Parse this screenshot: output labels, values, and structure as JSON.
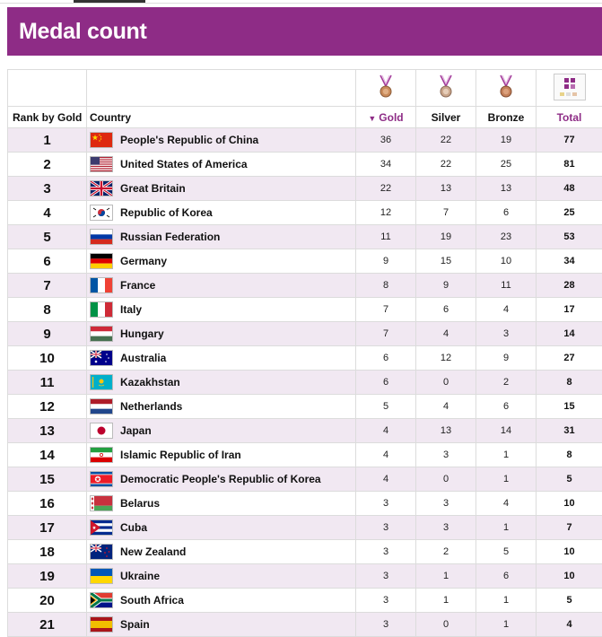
{
  "page": {
    "title": "Medal count"
  },
  "colors": {
    "accent": "#8e2c86",
    "row_alt": "#f1e8f2"
  },
  "table": {
    "medal_icons": [
      "medal-gold-icon",
      "medal-silver-icon",
      "medal-bronze-icon",
      "total-grid-icon"
    ],
    "headers": {
      "rank": "Rank by Gold",
      "country": "Country",
      "gold": "Gold",
      "silver": "Silver",
      "bronze": "Bronze",
      "total": "Total"
    },
    "sorted_by": "gold",
    "rows": [
      {
        "rank": "1",
        "country": "People's Republic of China",
        "flag": "china-flag-icon",
        "gold": "36",
        "silver": "22",
        "bronze": "19",
        "total": "77"
      },
      {
        "rank": "2",
        "country": "United States of America",
        "flag": "usa-flag-icon",
        "gold": "34",
        "silver": "22",
        "bronze": "25",
        "total": "81"
      },
      {
        "rank": "3",
        "country": "Great Britain",
        "flag": "uk-flag-icon",
        "gold": "22",
        "silver": "13",
        "bronze": "13",
        "total": "48"
      },
      {
        "rank": "4",
        "country": "Republic of Korea",
        "flag": "korea-flag-icon",
        "gold": "12",
        "silver": "7",
        "bronze": "6",
        "total": "25"
      },
      {
        "rank": "5",
        "country": "Russian Federation",
        "flag": "russia-flag-icon",
        "gold": "11",
        "silver": "19",
        "bronze": "23",
        "total": "53"
      },
      {
        "rank": "6",
        "country": "Germany",
        "flag": "germany-flag-icon",
        "gold": "9",
        "silver": "15",
        "bronze": "10",
        "total": "34"
      },
      {
        "rank": "7",
        "country": "France",
        "flag": "france-flag-icon",
        "gold": "8",
        "silver": "9",
        "bronze": "11",
        "total": "28"
      },
      {
        "rank": "8",
        "country": "Italy",
        "flag": "italy-flag-icon",
        "gold": "7",
        "silver": "6",
        "bronze": "4",
        "total": "17"
      },
      {
        "rank": "9",
        "country": "Hungary",
        "flag": "hungary-flag-icon",
        "gold": "7",
        "silver": "4",
        "bronze": "3",
        "total": "14"
      },
      {
        "rank": "10",
        "country": "Australia",
        "flag": "australia-flag-icon",
        "gold": "6",
        "silver": "12",
        "bronze": "9",
        "total": "27"
      },
      {
        "rank": "11",
        "country": "Kazakhstan",
        "flag": "kazakhstan-flag-icon",
        "gold": "6",
        "silver": "0",
        "bronze": "2",
        "total": "8"
      },
      {
        "rank": "12",
        "country": "Netherlands",
        "flag": "netherlands-flag-icon",
        "gold": "5",
        "silver": "4",
        "bronze": "6",
        "total": "15"
      },
      {
        "rank": "13",
        "country": "Japan",
        "flag": "japan-flag-icon",
        "gold": "4",
        "silver": "13",
        "bronze": "14",
        "total": "31"
      },
      {
        "rank": "14",
        "country": "Islamic Republic of Iran",
        "flag": "iran-flag-icon",
        "gold": "4",
        "silver": "3",
        "bronze": "1",
        "total": "8"
      },
      {
        "rank": "15",
        "country": "Democratic People's Republic of Korea",
        "flag": "north-korea-flag-icon",
        "gold": "4",
        "silver": "0",
        "bronze": "1",
        "total": "5"
      },
      {
        "rank": "16",
        "country": "Belarus",
        "flag": "belarus-flag-icon",
        "gold": "3",
        "silver": "3",
        "bronze": "4",
        "total": "10"
      },
      {
        "rank": "17",
        "country": "Cuba",
        "flag": "cuba-flag-icon",
        "gold": "3",
        "silver": "3",
        "bronze": "1",
        "total": "7"
      },
      {
        "rank": "18",
        "country": "New Zealand",
        "flag": "new-zealand-flag-icon",
        "gold": "3",
        "silver": "2",
        "bronze": "5",
        "total": "10"
      },
      {
        "rank": "19",
        "country": "Ukraine",
        "flag": "ukraine-flag-icon",
        "gold": "3",
        "silver": "1",
        "bronze": "6",
        "total": "10"
      },
      {
        "rank": "20",
        "country": "South Africa",
        "flag": "south-africa-flag-icon",
        "gold": "3",
        "silver": "1",
        "bronze": "1",
        "total": "5"
      },
      {
        "rank": "21",
        "country": "Spain",
        "flag": "spain-flag-icon",
        "gold": "3",
        "silver": "0",
        "bronze": "1",
        "total": "4"
      }
    ]
  }
}
